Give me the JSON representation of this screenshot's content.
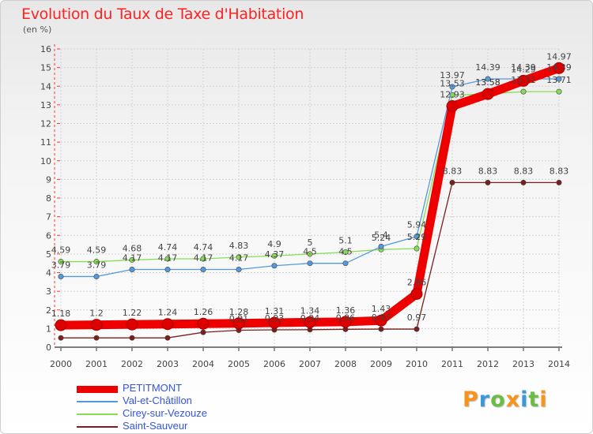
{
  "title": "Evolution du Taux de Taxe d'Habitation",
  "subtitle": "(en %)",
  "logo_text": "Proxiti",
  "logo_colors": [
    "#f7941d",
    "#3a9ad9",
    "#6cbd45",
    "#f7941d",
    "#3a9ad9",
    "#6cbd45",
    "#f7941d"
  ],
  "chart_data": {
    "type": "line",
    "title": "Evolution du Taux de Taxe d'Habitation",
    "subtitle": "(en %)",
    "xlabel": "",
    "ylabel": "",
    "x": [
      2000,
      2001,
      2002,
      2003,
      2004,
      2005,
      2006,
      2007,
      2008,
      2009,
      2010,
      2011,
      2012,
      2013,
      2014
    ],
    "y_ticks": [
      0,
      1,
      2,
      3,
      4,
      5,
      6,
      7,
      8,
      9,
      10,
      11,
      12,
      13,
      14,
      15,
      16
    ],
    "ylim": [
      0,
      16
    ],
    "grid": true,
    "legend_position": "bottom-left",
    "series": [
      {
        "name": "Saint-Sauveur",
        "color": "#7a1f1f",
        "values": [
          0.5,
          0.5,
          0.5,
          0.5,
          0.8,
          0.91,
          0.93,
          0.94,
          0.96,
          0.97,
          0.97,
          8.83,
          8.83,
          8.83,
          8.83
        ],
        "labels": [
          "",
          "",
          "",
          "",
          "",
          "0.91",
          "0.93",
          "0.94",
          "0.96",
          "0.97",
          "0.97",
          "8.83",
          "8.83",
          "8.83",
          "8.83"
        ]
      },
      {
        "name": "Cirey-sur-Vezouze",
        "color": "#88dd55",
        "values": [
          4.59,
          4.59,
          4.68,
          4.74,
          4.74,
          4.83,
          4.9,
          5.0,
          5.1,
          5.24,
          5.29,
          13.53,
          13.58,
          13.71,
          13.71
        ],
        "labels": [
          "4.59",
          "4.59",
          "4.68",
          "4.74",
          "4.74",
          "4.83",
          "4.9",
          "5",
          "5.1",
          "5.24",
          "5.29",
          "13.53",
          "13.58",
          "13.71",
          "13.71"
        ]
      },
      {
        "name": "Val-et-Châtillon",
        "color": "#5599dd",
        "values": [
          3.79,
          3.79,
          4.17,
          4.17,
          4.17,
          4.17,
          4.37,
          4.5,
          4.5,
          5.4,
          5.94,
          13.97,
          14.39,
          14.39,
          14.39
        ],
        "labels": [
          "3.79",
          "3.79",
          "4.17",
          "4.17",
          "4.17",
          "4.17",
          "4.37",
          "4.5",
          "4.5",
          "5.4",
          "5.94",
          "13.97",
          "14.39",
          "14.39",
          "14.39"
        ]
      },
      {
        "name": "PETITMONT",
        "color": "#ee0000",
        "values": [
          1.18,
          1.2,
          1.22,
          1.24,
          1.26,
          1.28,
          1.31,
          1.34,
          1.36,
          1.43,
          2.86,
          12.93,
          13.58,
          14.29,
          14.97
        ],
        "labels": [
          "1.18",
          "1.2",
          "1.22",
          "1.24",
          "1.26",
          "1.28",
          "1.31",
          "1.34",
          "1.36",
          "1.43",
          "2.86",
          "12.93",
          "13.58",
          "14.29",
          "14.97"
        ]
      }
    ],
    "legend_order": [
      "PETITMONT",
      "Val-et-Châtillon",
      "Cirey-sur-Vezouze",
      "Saint-Sauveur"
    ]
  }
}
